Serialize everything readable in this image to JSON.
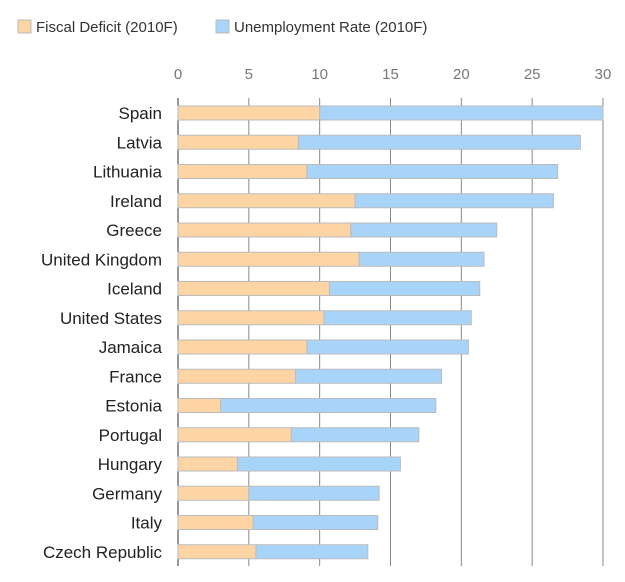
{
  "chart_data": {
    "type": "bar",
    "orientation": "horizontal",
    "stacked": true,
    "categories": [
      "Spain",
      "Latvia",
      "Lithuania",
      "Ireland",
      "Greece",
      "United Kingdom",
      "Iceland",
      "United States",
      "Jamaica",
      "France",
      "Estonia",
      "Portugal",
      "Hungary",
      "Germany",
      "Italy",
      "Czech Republic"
    ],
    "series": [
      {
        "name": "Fiscal Deficit (2010F)",
        "color": "#fdd4a4",
        "values": [
          10.0,
          8.5,
          9.1,
          12.5,
          12.2,
          12.8,
          10.7,
          10.3,
          9.1,
          8.3,
          3.0,
          8.0,
          4.2,
          5.0,
          5.3,
          5.5
        ]
      },
      {
        "name": "Unemployment Rate (2010F)",
        "color": "#a8d4fa",
        "values": [
          20.0,
          19.9,
          17.7,
          14.0,
          10.3,
          8.8,
          10.6,
          10.4,
          11.4,
          10.3,
          15.2,
          9.0,
          11.5,
          9.2,
          8.8,
          7.9
        ]
      }
    ],
    "xlim": [
      0,
      30
    ],
    "xticks": [
      "0",
      "5",
      "10",
      "15",
      "20",
      "25",
      "30"
    ],
    "grid": true,
    "legend": "top-left",
    "title": "",
    "xlabel": "",
    "ylabel": ""
  }
}
